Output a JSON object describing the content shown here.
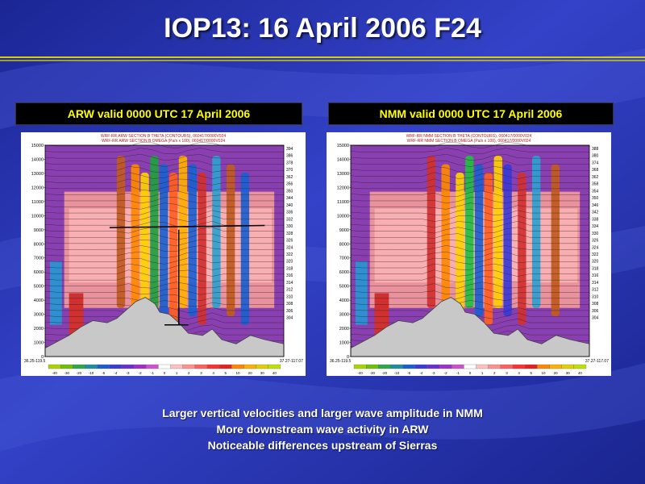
{
  "slide": {
    "title": "IOP13: 16 April 2006 F24",
    "colors": {
      "background": "#2733b0",
      "title_rule": "#d8d000",
      "header_text": "#ffff00"
    }
  },
  "panels": [
    {
      "header": "ARW valid 0000 UTC 17 April 2006",
      "plot_titles": [
        "WRF-RR ARW SECTION B THETA (CONTOURS), 060417/0000V024",
        "WRF-RR ARW SECTION B OMEGA (Pa/s x 100), 060417/0000V024"
      ],
      "y_ticks": [
        "15000",
        "14000",
        "13000",
        "12000",
        "11000",
        "10000",
        "9000",
        "8000",
        "7000",
        "6000",
        "5000",
        "4000",
        "3000",
        "2000",
        "1000",
        "0"
      ],
      "theta_labels": [
        "394",
        "386",
        "378",
        "370",
        "362",
        "356",
        "350",
        "344",
        "340",
        "336",
        "332",
        "330",
        "328",
        "326",
        "324",
        "322",
        "320",
        "318",
        "316",
        "314",
        "312",
        "310",
        "308",
        "306",
        "304"
      ],
      "endpoints": [
        "36.25-119.5",
        "37.27-117.07"
      ],
      "color_scale": [
        "-40",
        "-30",
        "-20",
        "-10",
        "-5",
        "-4",
        "-3",
        "-2",
        "-1",
        "0",
        "1",
        "2",
        "3",
        "4",
        "5",
        "10",
        "20",
        "30",
        "40"
      ]
    },
    {
      "header": "NMM valid 0000 UTC 17 April 2006",
      "plot_titles": [
        "WRF-RR NMM SECTION B THETA (CONTOURS), 060417/0000V024",
        "WRF-RR NMM SECTION B OMEGA (Pa/s x 100), 060417/0000V024"
      ],
      "y_ticks": [
        "15000",
        "14000",
        "13000",
        "12000",
        "11000",
        "10000",
        "9000",
        "8000",
        "7000",
        "6000",
        "5000",
        "4000",
        "3000",
        "2000",
        "1000",
        "0"
      ],
      "theta_labels": [
        "388",
        "380",
        "374",
        "368",
        "362",
        "358",
        "354",
        "350",
        "346",
        "342",
        "338",
        "334",
        "330",
        "326",
        "324",
        "322",
        "320",
        "318",
        "316",
        "314",
        "312",
        "310",
        "308",
        "306",
        "304"
      ],
      "endpoints": [
        "36.25-119.5",
        "37.27-117.07"
      ],
      "color_scale": [
        "-40",
        "-30",
        "-20",
        "-10",
        "-5",
        "-4",
        "-3",
        "-2",
        "-1",
        "0",
        "1",
        "2",
        "3",
        "4",
        "5",
        "10",
        "20",
        "30",
        "40"
      ]
    }
  ],
  "captions": [
    "Larger vertical velocities  and larger wave amplitude in NMM",
    "More downstream wave activity in ARW",
    "Noticeable differences upstream of Sierras"
  ]
}
